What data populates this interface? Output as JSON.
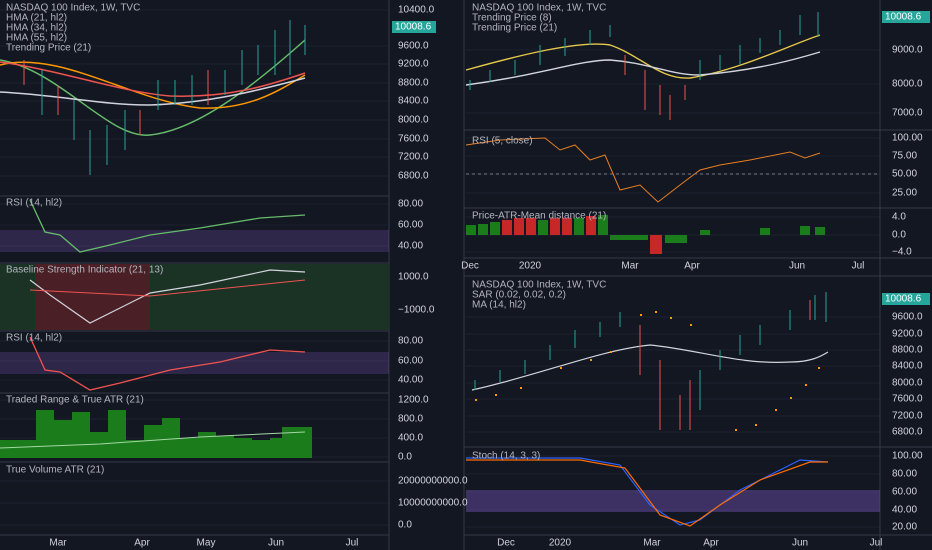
{
  "left": {
    "price": {
      "legend": [
        "NASDAQ 100 Index, 1W, TVC",
        "HMA (21, hl2)",
        "HMA (34, hl2)",
        "HMA (55, hl2)",
        "Trending Price (21)"
      ],
      "axis": [
        "10400.0",
        "9600.0",
        "9200.0",
        "8800.0",
        "8400.0",
        "8000.0",
        "7600.0",
        "7200.0",
        "6800.0"
      ],
      "last": "10008.6"
    },
    "rsi1": {
      "legend": "RSI (14, hl2)",
      "axis": [
        "80.00",
        "60.00",
        "40.00"
      ]
    },
    "bsi": {
      "legend": "Baseline Strength Indicator (21, 13)",
      "axis": [
        "1000.0",
        "−1000.0"
      ]
    },
    "rsi2": {
      "legend": "RSI (14, hl2)",
      "axis": [
        "80.00",
        "60.00",
        "40.00"
      ]
    },
    "atr": {
      "legend": "Traded Range & True ATR (21)",
      "axis": [
        "1200.0",
        "800.0",
        "400.0",
        "0.0"
      ]
    },
    "vol": {
      "legend": "True Volume ATR (21)",
      "axis": [
        "20000000000.0",
        "10000000000.0",
        "0.0"
      ]
    },
    "time": [
      "Mar",
      "Apr",
      "May",
      "Jun",
      "Jul"
    ]
  },
  "right_top": {
    "price": {
      "legend": [
        "NASDAQ 100 Index, 1W, TVC",
        "Trending Price (8)",
        "Trending Price (21)"
      ],
      "axis": [
        "9000.0",
        "8000.0",
        "7000.0"
      ],
      "last": "10008.6"
    },
    "rsi": {
      "legend": "RSI (5, close)",
      "axis": [
        "100.00",
        "75.00",
        "50.00",
        "25.00"
      ]
    },
    "dist": {
      "legend": "Price-ATR-Mean distance (21)",
      "axis": [
        "4.0",
        "0.0",
        "−4.0"
      ]
    },
    "time": [
      "Dec",
      "2020",
      "Mar",
      "Apr",
      "Jun",
      "Jul"
    ]
  },
  "right_bottom": {
    "price": {
      "legend": [
        "NASDAQ 100 Index, 1W, TVC",
        "SAR (0.02, 0.02, 0.2)",
        "MA (14, hl2)"
      ],
      "axis": [
        "9600.0",
        "9200.0",
        "8800.0",
        "8400.0",
        "8000.0",
        "7600.0",
        "7200.0",
        "6800.0"
      ],
      "last": "10008.6"
    },
    "stoch": {
      "legend": "Stoch (14, 3, 3)",
      "axis": [
        "100.00",
        "80.00",
        "60.00",
        "40.00",
        "20.00"
      ]
    },
    "time": [
      "Dec",
      "2020",
      "Mar",
      "Apr",
      "Jun",
      "Jul"
    ]
  }
}
